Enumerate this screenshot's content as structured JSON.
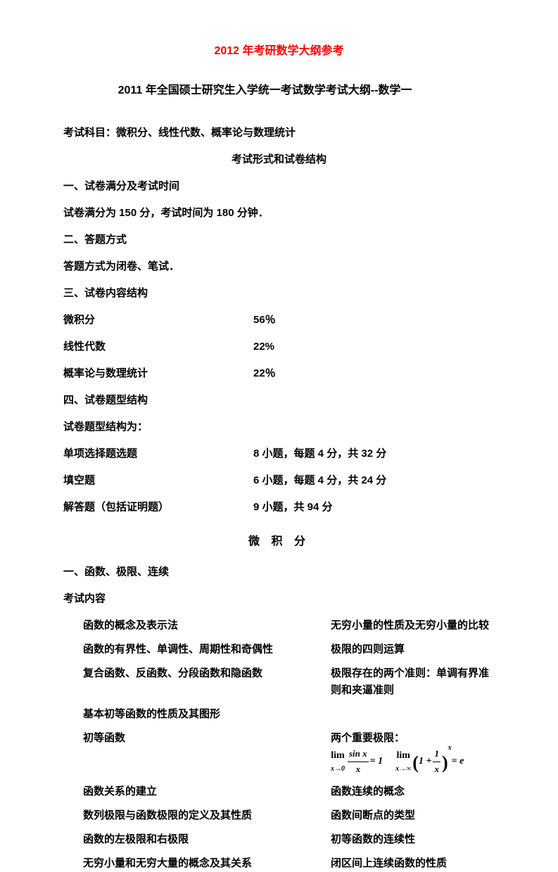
{
  "colors": {
    "title_red": "#ff0000",
    "text_black": "#000000",
    "background": "#ffffff"
  },
  "fonts": {
    "heading_family": "SimHei",
    "body_family": "SimSun",
    "formula_family": "Times New Roman",
    "base_size_pt": 11,
    "title_size_pt": 12
  },
  "title": "2012 年考研数学大纲参考",
  "subtitle": "2011 年全国硕士研究生入学统一考试数学考试大纲--数学一",
  "exam_subjects_line": "考试科目：微积分、线性代数、概率论与数理统计",
  "exam_format_heading": "考试形式和试卷结构",
  "section1": {
    "heading": "一、试卷满分及考试时间",
    "text": "试卷满分为 150 分，考试时间为 180 分钟．"
  },
  "section2": {
    "heading": "二、答题方式",
    "text": "答题方式为闭卷、笔试．"
  },
  "section3": {
    "heading": "三、试卷内容结构",
    "rows": [
      {
        "label": "微积分",
        "value": "56％"
      },
      {
        "label": "线性代数",
        "value": "22%"
      },
      {
        "label": "概率论与数理统计",
        "value": "22％"
      }
    ]
  },
  "section4": {
    "heading": "四、试卷题型结构",
    "intro": "试卷题型结构为：",
    "rows": [
      {
        "label": "单项选择题选题",
        "value": "8 小题，每题 4 分，共 32 分"
      },
      {
        "label": "填空题",
        "value": "6 小题，每题 4 分，共 24 分"
      },
      {
        "label": "解答题（包括证明题）",
        "value": "9 小题，共 94 分"
      }
    ]
  },
  "calculus": {
    "title": "微 积 分",
    "sub_heading": "一、函数、极限、连续",
    "content_label": "考试内容",
    "left_items": [
      "函数的概念及表示法",
      "函数的有界性、单调性、周期性和奇偶性",
      "复合函数、反函数、分段函数和隐函数",
      "基本初等函数的性质及其图形",
      "初等函数",
      "函数关系的建立",
      "数列极限与函数极限的定义及其性质",
      "函数的左极限和右极限",
      "无穷小量和无穷大量的概念及其关系"
    ],
    "right_items": [
      "无穷小量的性质及无穷小量的比较",
      "极限的四则运算",
      "极限存在的两个准则：单调有界准则和夹逼准则",
      "",
      "两个重要极限：",
      "函数连续的概念",
      "函数间断点的类型",
      "初等函数的连续性",
      "闭区间上连续函数的性质"
    ],
    "formulas": {
      "f1": {
        "lim_sub": "x→0",
        "frac_num": "sin x",
        "frac_den": "x",
        "eq": "= 1"
      },
      "f2": {
        "lim_sub": "x→∞",
        "inner_num": "1",
        "inner_den": "x",
        "exp": "x",
        "eq": "= e"
      }
    }
  }
}
